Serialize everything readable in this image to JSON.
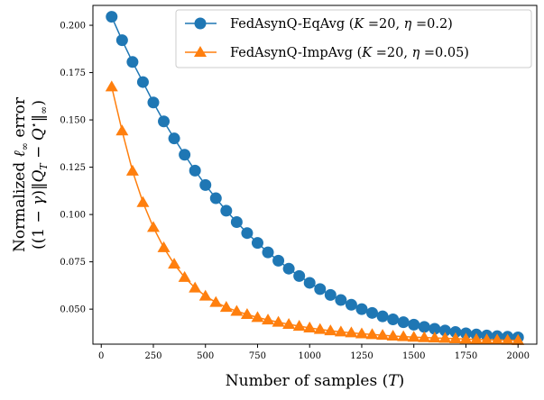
{
  "chart_data": {
    "type": "line",
    "xlabel": "Number of samples (T)",
    "ylabel_line1": "Normalized ℓ∞ error",
    "ylabel_line2": "((1 − γ)‖Q_T − Q*‖∞)",
    "xlim": [
      -40,
      2090
    ],
    "ylim": [
      0.0315,
      0.2105
    ],
    "xticks": [
      0,
      250,
      500,
      750,
      1000,
      1250,
      1500,
      1750,
      2000
    ],
    "yticks": [
      0.05,
      0.075,
      0.1,
      0.125,
      0.15,
      0.175,
      0.2
    ],
    "ytick_labels": [
      "0.050",
      "0.075",
      "0.100",
      "0.125",
      "0.150",
      "0.175",
      "0.200"
    ],
    "grid": false,
    "legend_position": "top-right",
    "x": [
      50,
      100,
      150,
      200,
      250,
      300,
      350,
      400,
      450,
      500,
      550,
      600,
      650,
      700,
      750,
      800,
      850,
      900,
      950,
      1000,
      1050,
      1100,
      1150,
      1200,
      1250,
      1300,
      1350,
      1400,
      1450,
      1500,
      1550,
      1600,
      1650,
      1700,
      1750,
      1800,
      1850,
      1900,
      1950,
      2000
    ],
    "series": [
      {
        "name": "FedAsynQ-EqAvg (K=20, η=0.2)",
        "color": "#1f77b4",
        "marker": "circle",
        "values": [
          0.2045,
          0.1921,
          0.1806,
          0.17,
          0.1592,
          0.1492,
          0.1402,
          0.1316,
          0.1232,
          0.1156,
          0.1086,
          0.102,
          0.096,
          0.0902,
          0.085,
          0.08,
          0.0756,
          0.0714,
          0.0675,
          0.0639,
          0.0606,
          0.0575,
          0.0548,
          0.0523,
          0.05,
          0.048,
          0.0462,
          0.0446,
          0.0431,
          0.0418,
          0.0406,
          0.0396,
          0.0387,
          0.0379,
          0.0372,
          0.0366,
          0.0361,
          0.0357,
          0.0354,
          0.0351
        ]
      },
      {
        "name": "FedAsynQ-ImpAvg (K=20, η=0.05)",
        "color": "#ff7f0e",
        "marker": "triangle",
        "values": [
          0.1675,
          0.1442,
          0.123,
          0.1064,
          0.0932,
          0.0825,
          0.0738,
          0.0668,
          0.0612,
          0.0569,
          0.0536,
          0.051,
          0.0489,
          0.0472,
          0.0456,
          0.0443,
          0.0431,
          0.042,
          0.041,
          0.0401,
          0.0393,
          0.0386,
          0.038,
          0.0375,
          0.037,
          0.0366,
          0.0362,
          0.0358,
          0.0355,
          0.0352,
          0.035,
          0.0348,
          0.0346,
          0.0344,
          0.0342,
          0.034,
          0.0338,
          0.0337,
          0.0336,
          0.0335
        ]
      }
    ]
  }
}
